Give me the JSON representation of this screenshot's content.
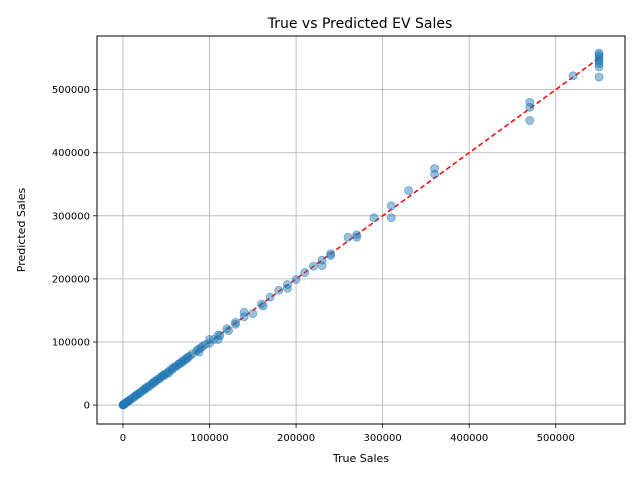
{
  "chart_data": {
    "type": "scatter",
    "title": "True vs Predicted EV Sales",
    "xlabel": "True Sales",
    "ylabel": "Predicted Sales",
    "xlim": [
      -30000,
      580000
    ],
    "ylim": [
      -30000,
      585000
    ],
    "xticks": [
      0,
      100000,
      200000,
      300000,
      400000,
      500000
    ],
    "yticks": [
      0,
      100000,
      200000,
      300000,
      400000,
      500000
    ],
    "xtick_labels": [
      "0",
      "100000",
      "200000",
      "300000",
      "400000",
      "500000"
    ],
    "ytick_labels": [
      "0",
      "100000",
      "200000",
      "300000",
      "400000",
      "500000"
    ],
    "grid": true,
    "point_color": "#1f77b4",
    "point_alpha": 0.45,
    "reference_line": {
      "style": "dashed",
      "color": "#ff0000",
      "from": [
        0,
        0
      ],
      "to": [
        550000,
        550000
      ]
    },
    "points": [
      [
        0,
        0
      ],
      [
        200,
        300
      ],
      [
        500,
        400
      ],
      [
        800,
        900
      ],
      [
        1000,
        1200
      ],
      [
        1500,
        1300
      ],
      [
        2000,
        2100
      ],
      [
        3000,
        2900
      ],
      [
        4000,
        4200
      ],
      [
        5000,
        5100
      ],
      [
        6000,
        5800
      ],
      [
        7000,
        7300
      ],
      [
        8000,
        7900
      ],
      [
        10000,
        10500
      ],
      [
        12000,
        11500
      ],
      [
        14000,
        14200
      ],
      [
        15000,
        15500
      ],
      [
        17000,
        16800
      ],
      [
        18000,
        18500
      ],
      [
        20000,
        19500
      ],
      [
        22000,
        22500
      ],
      [
        24000,
        23500
      ],
      [
        25000,
        26000
      ],
      [
        27000,
        26500
      ],
      [
        28000,
        29000
      ],
      [
        30000,
        29500
      ],
      [
        32000,
        31500
      ],
      [
        34000,
        35000
      ],
      [
        35000,
        34500
      ],
      [
        37000,
        38000
      ],
      [
        38000,
        37500
      ],
      [
        40000,
        41000
      ],
      [
        42000,
        41500
      ],
      [
        44000,
        44500
      ],
      [
        45000,
        46000
      ],
      [
        47000,
        46500
      ],
      [
        48000,
        49000
      ],
      [
        50000,
        49500
      ],
      [
        52000,
        52500
      ],
      [
        53000,
        51000
      ],
      [
        55000,
        56000
      ],
      [
        57000,
        56500
      ],
      [
        58000,
        59000
      ],
      [
        60000,
        61000
      ],
      [
        62000,
        61500
      ],
      [
        64000,
        64500
      ],
      [
        65000,
        66000
      ],
      [
        67000,
        66500
      ],
      [
        69000,
        70000
      ],
      [
        70000,
        69500
      ],
      [
        72000,
        73000
      ],
      [
        74000,
        73500
      ],
      [
        75000,
        76000
      ],
      [
        77000,
        77500
      ],
      [
        80000,
        81000
      ],
      [
        85000,
        86000
      ],
      [
        87000,
        88000
      ],
      [
        88000,
        84000
      ],
      [
        90000,
        91000
      ],
      [
        92000,
        93000
      ],
      [
        95000,
        96000
      ],
      [
        100000,
        104000
      ],
      [
        100000,
        98000
      ],
      [
        105000,
        104000
      ],
      [
        110000,
        111000
      ],
      [
        110000,
        104000
      ],
      [
        112000,
        110000
      ],
      [
        120000,
        121000
      ],
      [
        122000,
        118000
      ],
      [
        130000,
        128000
      ],
      [
        130000,
        131000
      ],
      [
        140000,
        147000
      ],
      [
        140000,
        140000
      ],
      [
        150000,
        145000
      ],
      [
        160000,
        160000
      ],
      [
        162000,
        157000
      ],
      [
        170000,
        171000
      ],
      [
        180000,
        182000
      ],
      [
        190000,
        191000
      ],
      [
        190000,
        185000
      ],
      [
        200000,
        199000
      ],
      [
        210000,
        210000
      ],
      [
        220000,
        220000
      ],
      [
        230000,
        230000
      ],
      [
        230000,
        221000
      ],
      [
        240000,
        240000
      ],
      [
        240000,
        237000
      ],
      [
        260000,
        266000
      ],
      [
        270000,
        270000
      ],
      [
        270000,
        266000
      ],
      [
        290000,
        297000
      ],
      [
        310000,
        316000
      ],
      [
        310000,
        297000
      ],
      [
        330000,
        340000
      ],
      [
        360000,
        375000
      ],
      [
        360000,
        366000
      ],
      [
        470000,
        480000
      ],
      [
        470000,
        472000
      ],
      [
        470000,
        451000
      ],
      [
        520000,
        522000
      ],
      [
        550000,
        558000
      ],
      [
        550000,
        555000
      ],
      [
        550000,
        552000
      ],
      [
        550000,
        548000
      ],
      [
        550000,
        545000
      ],
      [
        550000,
        541000
      ],
      [
        550000,
        536000
      ],
      [
        550000,
        520000
      ]
    ]
  }
}
